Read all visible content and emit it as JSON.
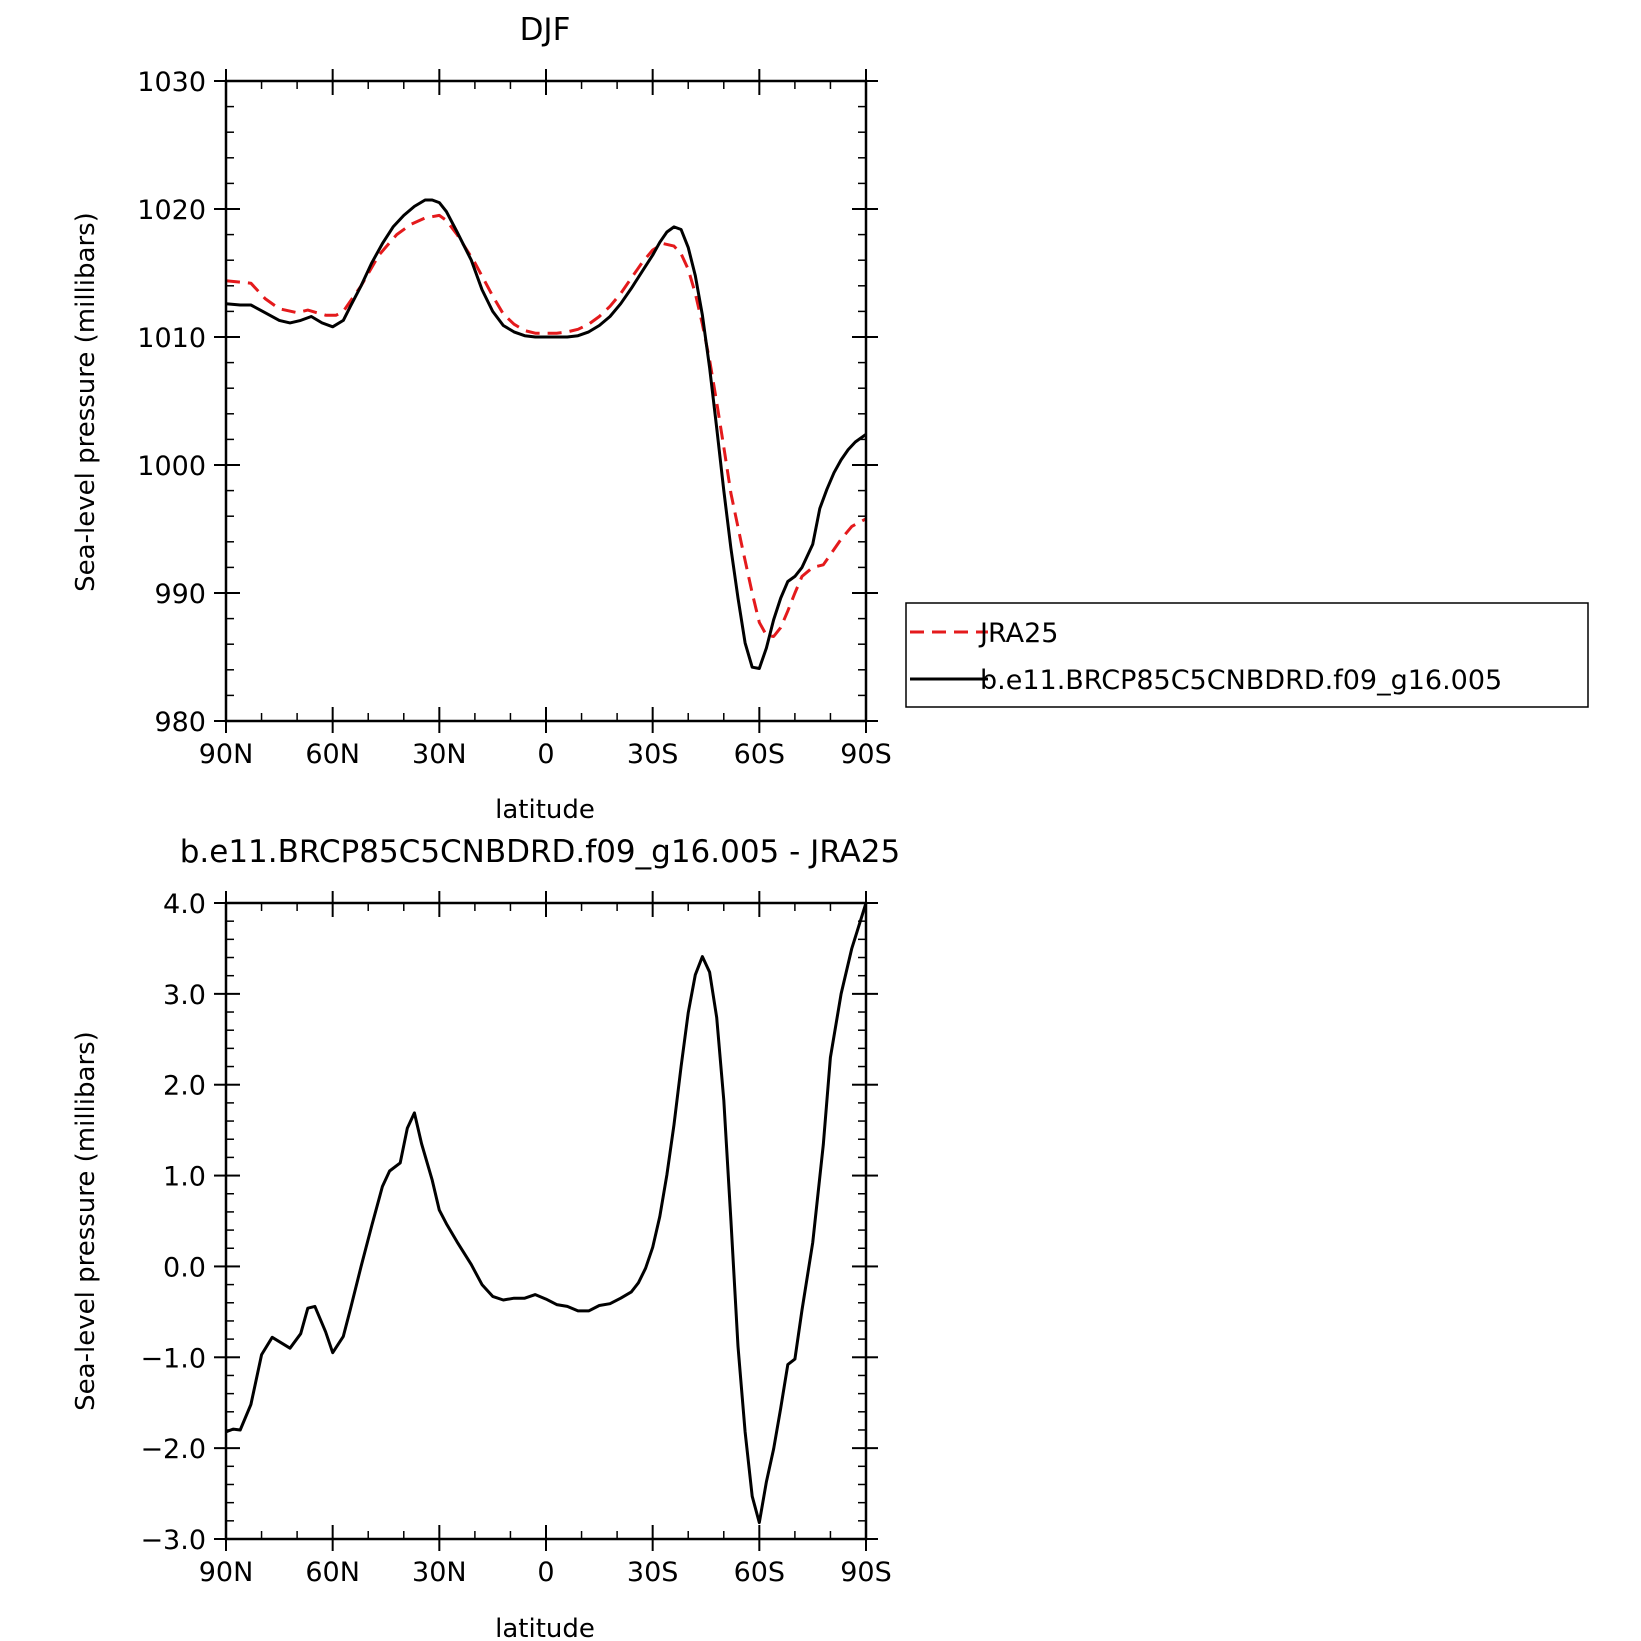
{
  "chart_data": [
    {
      "type": "line",
      "title": "DJF",
      "xlabel": "latitude",
      "ylabel": "Sea-level pressure (millibars)",
      "xlim": [
        90,
        -90
      ],
      "ylim": [
        980,
        1030
      ],
      "xticks": [
        90,
        60,
        30,
        0,
        -30,
        -60,
        -90
      ],
      "xtick_labels": [
        "90N",
        "60N",
        "30N",
        "0",
        "30S",
        "60S",
        "90S"
      ],
      "yticks": [
        980,
        990,
        1000,
        1010,
        1020,
        1030
      ],
      "ytick_labels": [
        "980",
        "990",
        "1000",
        "1010",
        "1020",
        "1030"
      ],
      "legend": "right",
      "series": [
        {
          "name": "JRA25",
          "color": "#e41a1c",
          "dash": "dashed",
          "x": [
            90,
            83,
            79,
            75,
            70,
            67,
            62,
            59,
            57,
            52,
            47,
            42,
            38,
            34,
            30,
            28,
            25,
            20,
            15,
            12,
            9,
            6,
            3,
            0,
            -3,
            -6,
            -9,
            -12,
            -15,
            -18,
            -21,
            -24,
            -27,
            -30,
            -33,
            -36,
            -38,
            -40,
            -42,
            -44,
            -46,
            -48,
            -50,
            -52,
            -55,
            -58,
            -60,
            -62,
            -64,
            -66,
            -68,
            -70,
            -72,
            -75,
            -78,
            -80,
            -83,
            -86,
            -90
          ],
          "y": [
            1014.4,
            1014.2,
            1013.0,
            1012.2,
            1011.9,
            1012.1,
            1011.7,
            1011.7,
            1012.0,
            1014.0,
            1016.4,
            1018.0,
            1018.8,
            1019.3,
            1019.5,
            1019.1,
            1018.0,
            1015.8,
            1013.2,
            1011.8,
            1011.0,
            1010.5,
            1010.3,
            1010.3,
            1010.3,
            1010.4,
            1010.6,
            1011.0,
            1011.6,
            1012.4,
            1013.4,
            1014.6,
            1015.8,
            1016.8,
            1017.3,
            1017.1,
            1016.5,
            1015.3,
            1013.4,
            1011.0,
            1008.2,
            1004.9,
            1001.4,
            997.8,
            993.8,
            990.0,
            987.7,
            986.7,
            986.6,
            987.3,
            988.6,
            990.0,
            991.3,
            992.0,
            992.2,
            993.0,
            994.2,
            995.2,
            995.8
          ]
        },
        {
          "name": "b.e11.BRCP85C5CNBDRD.f09_g16.005",
          "color": "#000000",
          "dash": "solid",
          "x": [
            90,
            86,
            83,
            79,
            75,
            72,
            69,
            66,
            63,
            60,
            57,
            55,
            52,
            49,
            46,
            43,
            40,
            37,
            34,
            32,
            30,
            28,
            25,
            21,
            18,
            15,
            12,
            9,
            6,
            3,
            0,
            -3,
            -6,
            -9,
            -12,
            -15,
            -18,
            -21,
            -24,
            -27,
            -30,
            -32,
            -34,
            -36,
            -38,
            -40,
            -42,
            -44,
            -46,
            -48,
            -50,
            -52,
            -54,
            -56,
            -58,
            -60,
            -62,
            -64,
            -66,
            -68,
            -70,
            -72,
            -75,
            -77,
            -79,
            -81,
            -83,
            -85,
            -87,
            -90
          ],
          "y": [
            1012.6,
            1012.5,
            1012.5,
            1011.9,
            1011.3,
            1011.1,
            1011.3,
            1011.6,
            1011.1,
            1010.8,
            1011.3,
            1012.4,
            1014.0,
            1015.8,
            1017.3,
            1018.6,
            1019.5,
            1020.2,
            1020.7,
            1020.7,
            1020.5,
            1019.8,
            1018.2,
            1016.0,
            1013.7,
            1012.0,
            1010.9,
            1010.4,
            1010.1,
            1010.0,
            1010.0,
            1010.0,
            1010.0,
            1010.1,
            1010.4,
            1010.9,
            1011.6,
            1012.6,
            1013.8,
            1015.1,
            1016.4,
            1017.4,
            1018.2,
            1018.6,
            1018.4,
            1017.0,
            1014.8,
            1011.7,
            1007.6,
            1002.9,
            998.0,
            993.5,
            989.6,
            986.1,
            984.2,
            984.1,
            985.7,
            987.9,
            989.6,
            990.9,
            991.3,
            992.0,
            993.8,
            996.6,
            998.1,
            999.4,
            1000.4,
            1001.2,
            1001.8,
            1002.4
          ]
        }
      ]
    },
    {
      "type": "line",
      "title": "b.e11.BRCP85C5CNBDRD.f09_g16.005 - JRA25",
      "xlabel": "latitude",
      "ylabel": "Sea-level pressure (millibars)",
      "xlim": [
        90,
        -90
      ],
      "ylim": [
        -3.0,
        4.0
      ],
      "xticks": [
        90,
        60,
        30,
        0,
        -30,
        -60,
        -90
      ],
      "xtick_labels": [
        "90N",
        "60N",
        "30N",
        "0",
        "30S",
        "60S",
        "90S"
      ],
      "yticks": [
        -3,
        -2,
        -1,
        0,
        1,
        2,
        3,
        4
      ],
      "ytick_labels": [
        "−3.0",
        "−2.0",
        "−1.0",
        "0.0",
        "1.0",
        "2.0",
        "3.0",
        "4.0"
      ],
      "series": [
        {
          "color": "#000000",
          "dash": "solid",
          "x": [
            90,
            88,
            86,
            83,
            80,
            77,
            72,
            69,
            67,
            65,
            62,
            60,
            57,
            55,
            52,
            49,
            46,
            44,
            41,
            39,
            37,
            35,
            32,
            30,
            28,
            25,
            21,
            18,
            15,
            12,
            9,
            6,
            3,
            0,
            -3,
            -6,
            -9,
            -12,
            -15,
            -18,
            -21,
            -24,
            -26,
            -28,
            -30,
            -32,
            -34,
            -36,
            -38,
            -40,
            -42,
            -44,
            -46,
            -48,
            -50,
            -52,
            -54,
            -56,
            -58,
            -60,
            -62,
            -64,
            -66,
            -68,
            -70,
            -72,
            -75,
            -78,
            -80,
            -83,
            -86,
            -90
          ],
          "y": [
            -1.82,
            -1.79,
            -1.8,
            -1.52,
            -0.97,
            -0.78,
            -0.9,
            -0.74,
            -0.46,
            -0.44,
            -0.72,
            -0.95,
            -0.77,
            -0.47,
            0.0,
            0.45,
            0.88,
            1.05,
            1.14,
            1.52,
            1.69,
            1.35,
            0.95,
            0.62,
            0.47,
            0.27,
            0.02,
            -0.2,
            -0.33,
            -0.37,
            -0.35,
            -0.35,
            -0.31,
            -0.36,
            -0.42,
            -0.44,
            -0.49,
            -0.49,
            -0.43,
            -0.41,
            -0.35,
            -0.28,
            -0.18,
            -0.02,
            0.21,
            0.55,
            1.01,
            1.56,
            2.2,
            2.79,
            3.21,
            3.41,
            3.24,
            2.74,
            1.83,
            0.51,
            -0.88,
            -1.82,
            -2.53,
            -2.82,
            -2.37,
            -2.01,
            -1.56,
            -1.08,
            -1.02,
            -0.48,
            0.26,
            1.34,
            2.3,
            3.0,
            3.5,
            4.0
          ]
        }
      ]
    }
  ]
}
